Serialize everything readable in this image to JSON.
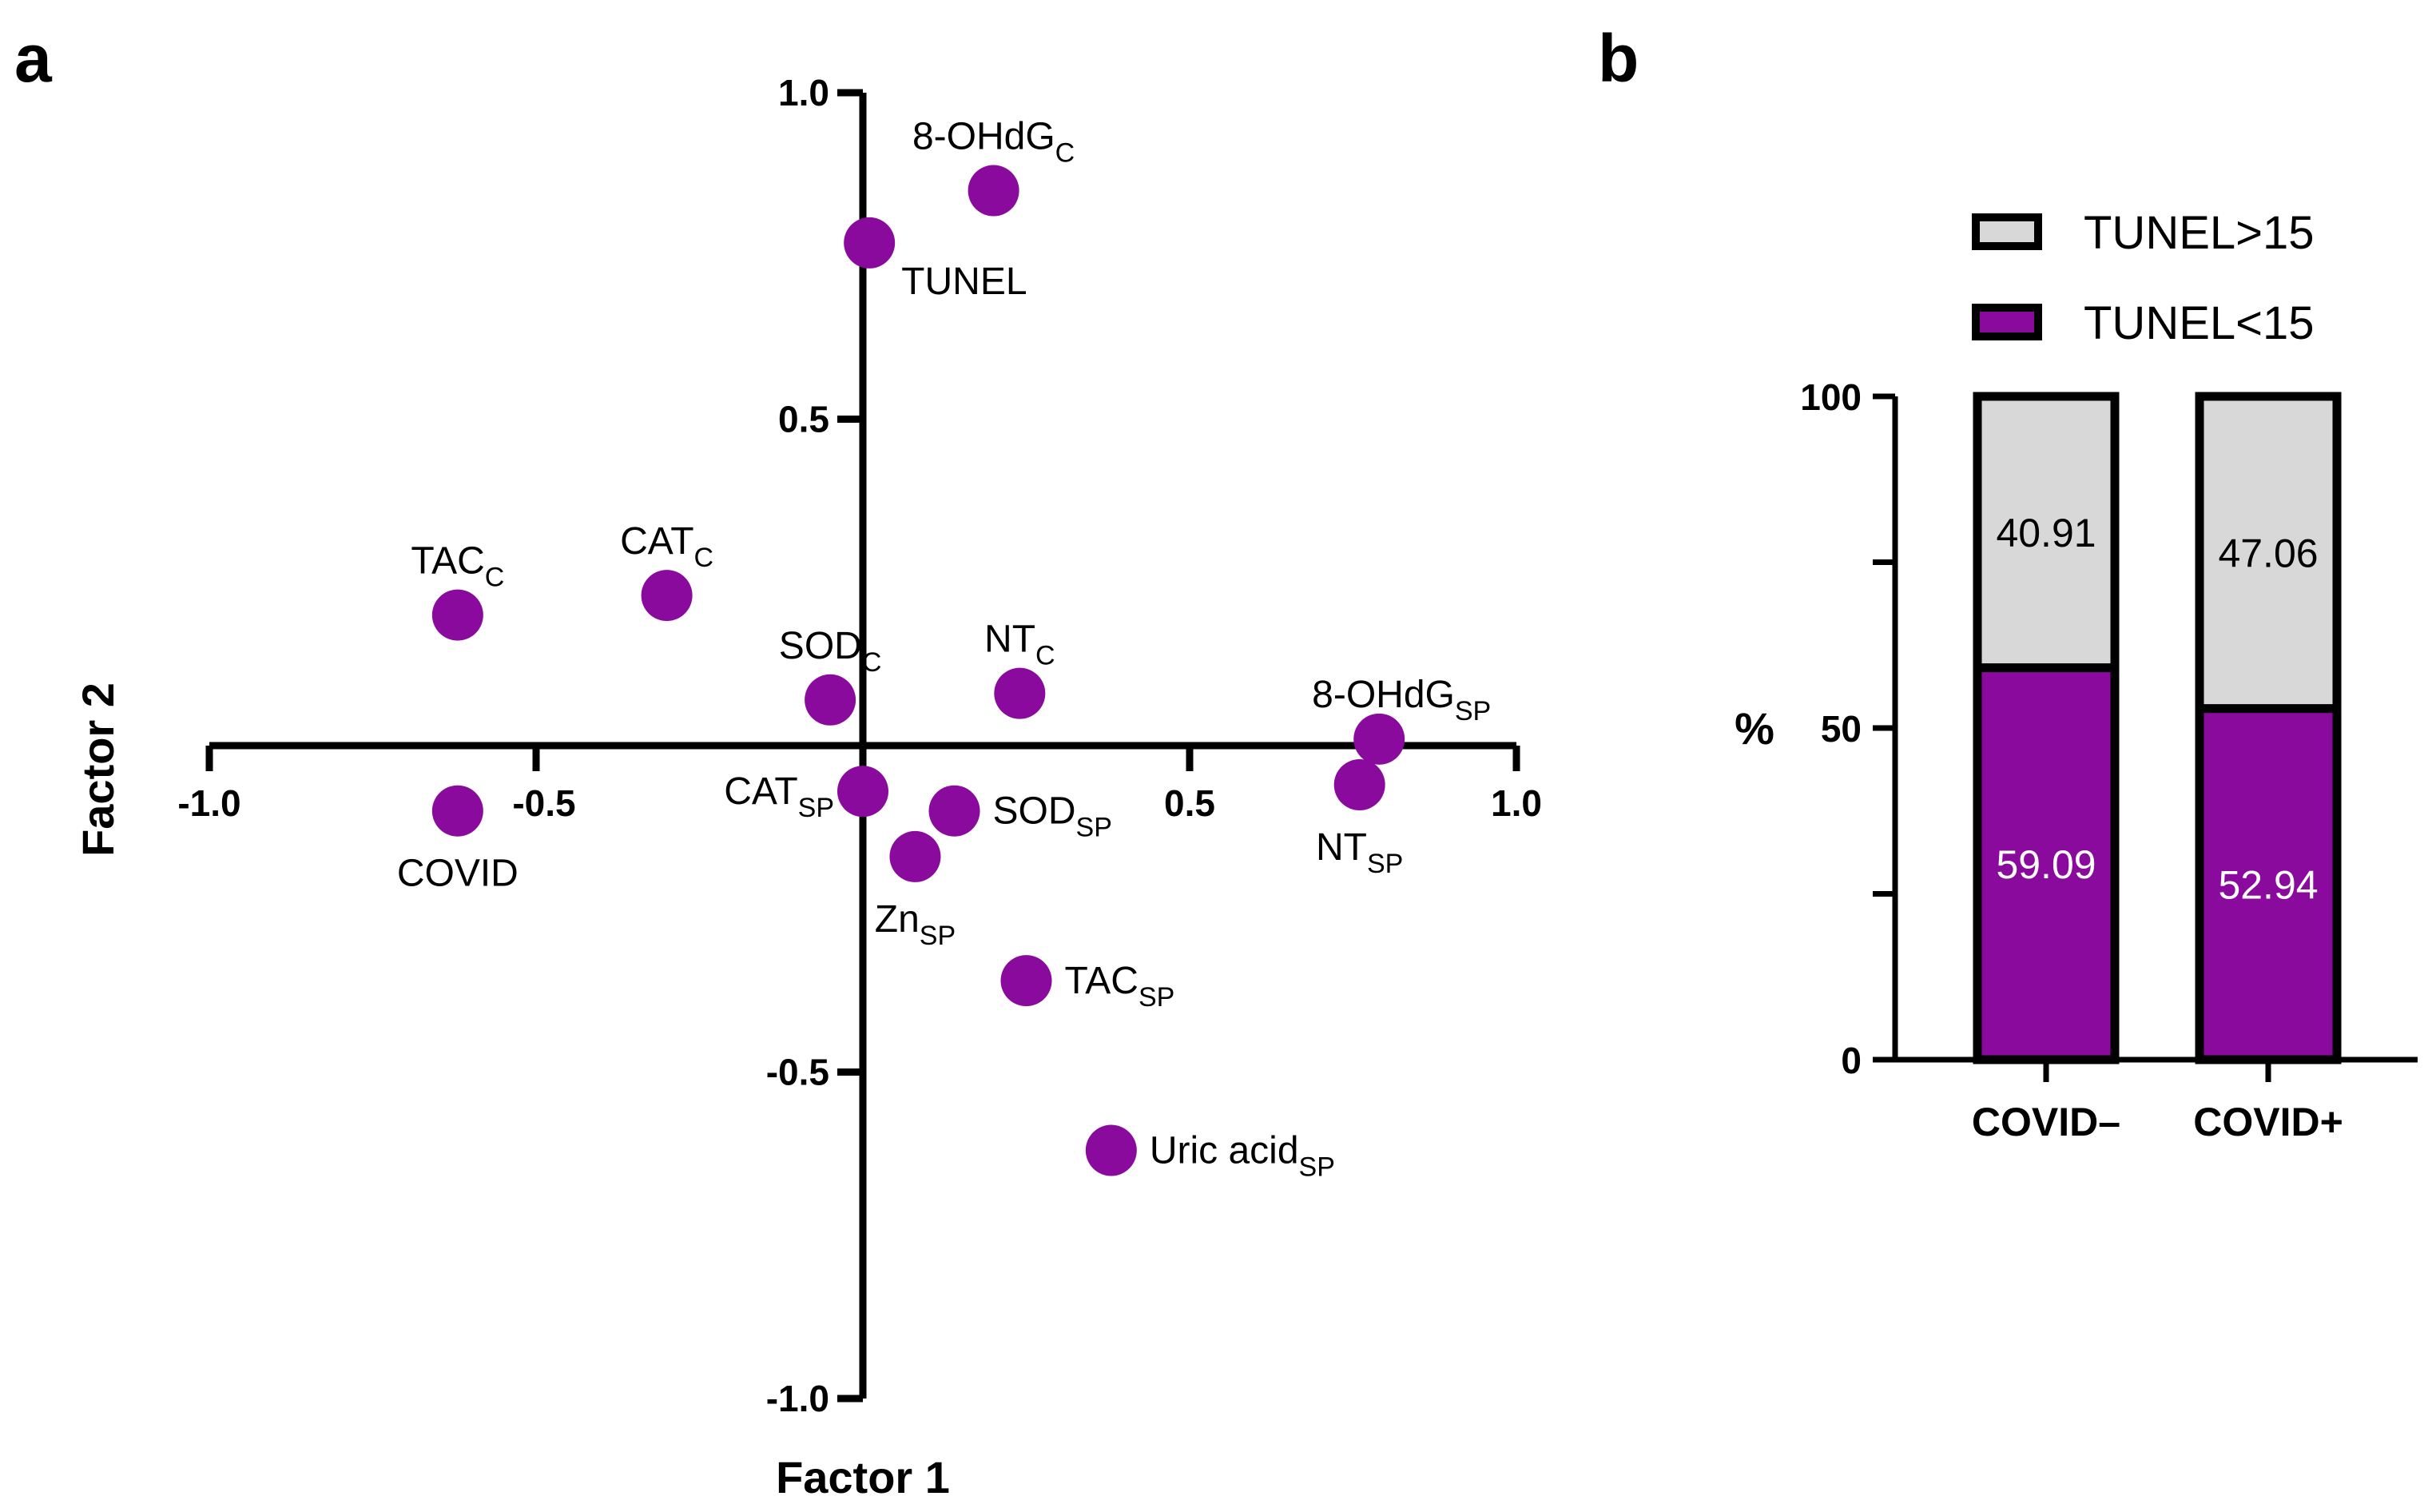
{
  "panels": {
    "a": "a",
    "b": "b"
  },
  "colors": {
    "point": "#8b0a9e",
    "below": "#8b0a9e",
    "above": "#d8d8d8",
    "axis": "#000000"
  },
  "chart_data": [
    {
      "type": "scatter",
      "panel": "a",
      "xlabel": "Factor 1",
      "ylabel": "Factor 2",
      "xlim": [
        -1.0,
        1.0
      ],
      "ylim": [
        -1.0,
        1.0
      ],
      "xticks": [
        "-1.0",
        "-0.5",
        "0.5",
        "1.0"
      ],
      "xtick_values": [
        -1.0,
        -0.5,
        0.5,
        1.0
      ],
      "yticks": [
        "1.0",
        "0.5",
        "-0.5",
        "-1.0"
      ],
      "ytick_values": [
        1.0,
        0.5,
        -0.5,
        -1.0
      ],
      "grid": false,
      "points": [
        {
          "label": "8-OHdG",
          "sub": "C",
          "x": 0.2,
          "y": 0.85,
          "pos": "above"
        },
        {
          "label": "TUNEL",
          "sub": "",
          "x": 0.01,
          "y": 0.77,
          "pos": "below-right"
        },
        {
          "label": "TAC",
          "sub": "C",
          "x": -0.62,
          "y": 0.2,
          "pos": "above"
        },
        {
          "label": "CAT",
          "sub": "C",
          "x": -0.3,
          "y": 0.23,
          "pos": "above"
        },
        {
          "label": "SOD",
          "sub": "C",
          "x": -0.05,
          "y": 0.07,
          "pos": "above"
        },
        {
          "label": "NT",
          "sub": "C",
          "x": 0.24,
          "y": 0.08,
          "pos": "above"
        },
        {
          "label": "8-OHdG",
          "sub": "SP",
          "x": 0.79,
          "y": 0.01,
          "pos": "above-left"
        },
        {
          "label": "NT",
          "sub": "SP",
          "x": 0.76,
          "y": -0.06,
          "pos": "below"
        },
        {
          "label": "CAT",
          "sub": "SP",
          "x": 0.0,
          "y": -0.07,
          "pos": "left"
        },
        {
          "label": "SOD",
          "sub": "SP",
          "x": 0.14,
          "y": -0.1,
          "pos": "right"
        },
        {
          "label": "Zn",
          "sub": "SP",
          "x": 0.08,
          "y": -0.17,
          "pos": "below"
        },
        {
          "label": "TAC",
          "sub": "SP",
          "x": 0.25,
          "y": -0.36,
          "pos": "right"
        },
        {
          "label": "Uric acid",
          "sub": "SP",
          "x": 0.38,
          "y": -0.62,
          "pos": "right"
        },
        {
          "label": "COVID",
          "sub": "",
          "x": -0.62,
          "y": -0.1,
          "pos": "below"
        }
      ]
    },
    {
      "type": "bar",
      "stacked": true,
      "panel": "b",
      "ylabel": "%",
      "ylim": [
        0,
        100
      ],
      "yticks": [
        "0",
        "50",
        "100"
      ],
      "ytick_values": [
        0,
        50,
        100
      ],
      "categories": [
        "COVID–",
        "COVID+"
      ],
      "series": [
        {
          "name": "TUNEL<15",
          "values": [
            59.09,
            52.94
          ],
          "labels": [
            "59.09",
            "52.94"
          ]
        },
        {
          "name": "TUNEL>15",
          "values": [
            40.91,
            47.06
          ],
          "labels": [
            "40.91",
            "47.06"
          ]
        }
      ],
      "legend": {
        "position": "top",
        "entries": [
          "TUNEL>15",
          "TUNEL<15"
        ]
      }
    }
  ]
}
